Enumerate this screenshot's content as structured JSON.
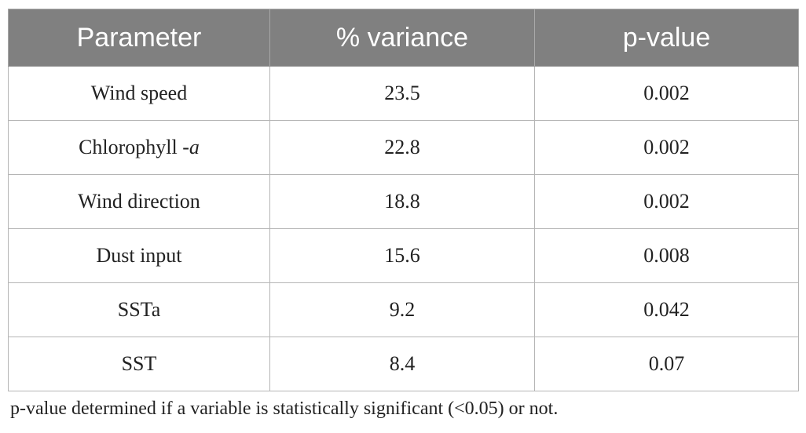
{
  "table": {
    "headers": [
      "Parameter",
      "% variance",
      "p-value"
    ],
    "rows": [
      {
        "parameter": "Wind speed",
        "parameter_prefix": "",
        "parameter_italic": "",
        "variance": "23.5",
        "p_value": "0.002"
      },
      {
        "parameter": "Chlorophyll -a",
        "parameter_prefix": "Chlorophyll -",
        "parameter_italic": "a",
        "variance": "22.8",
        "p_value": "0.002"
      },
      {
        "parameter": "Wind direction",
        "parameter_prefix": "",
        "parameter_italic": "",
        "variance": "18.8",
        "p_value": "0.002"
      },
      {
        "parameter": "Dust input",
        "parameter_prefix": "",
        "parameter_italic": "",
        "variance": "15.6",
        "p_value": "0.008"
      },
      {
        "parameter": "SSTa",
        "parameter_prefix": "",
        "parameter_italic": "",
        "variance": "9.2",
        "p_value": "0.042"
      },
      {
        "parameter": "SST",
        "parameter_prefix": "",
        "parameter_italic": "",
        "variance": "8.4",
        "p_value": "0.07"
      }
    ]
  },
  "footnote": "p-value determined if a variable is statistically significant (<0.05) or not.",
  "colors": {
    "header_bg": "#808080",
    "header_text": "#ffffff",
    "border": "#b5b5b5"
  }
}
